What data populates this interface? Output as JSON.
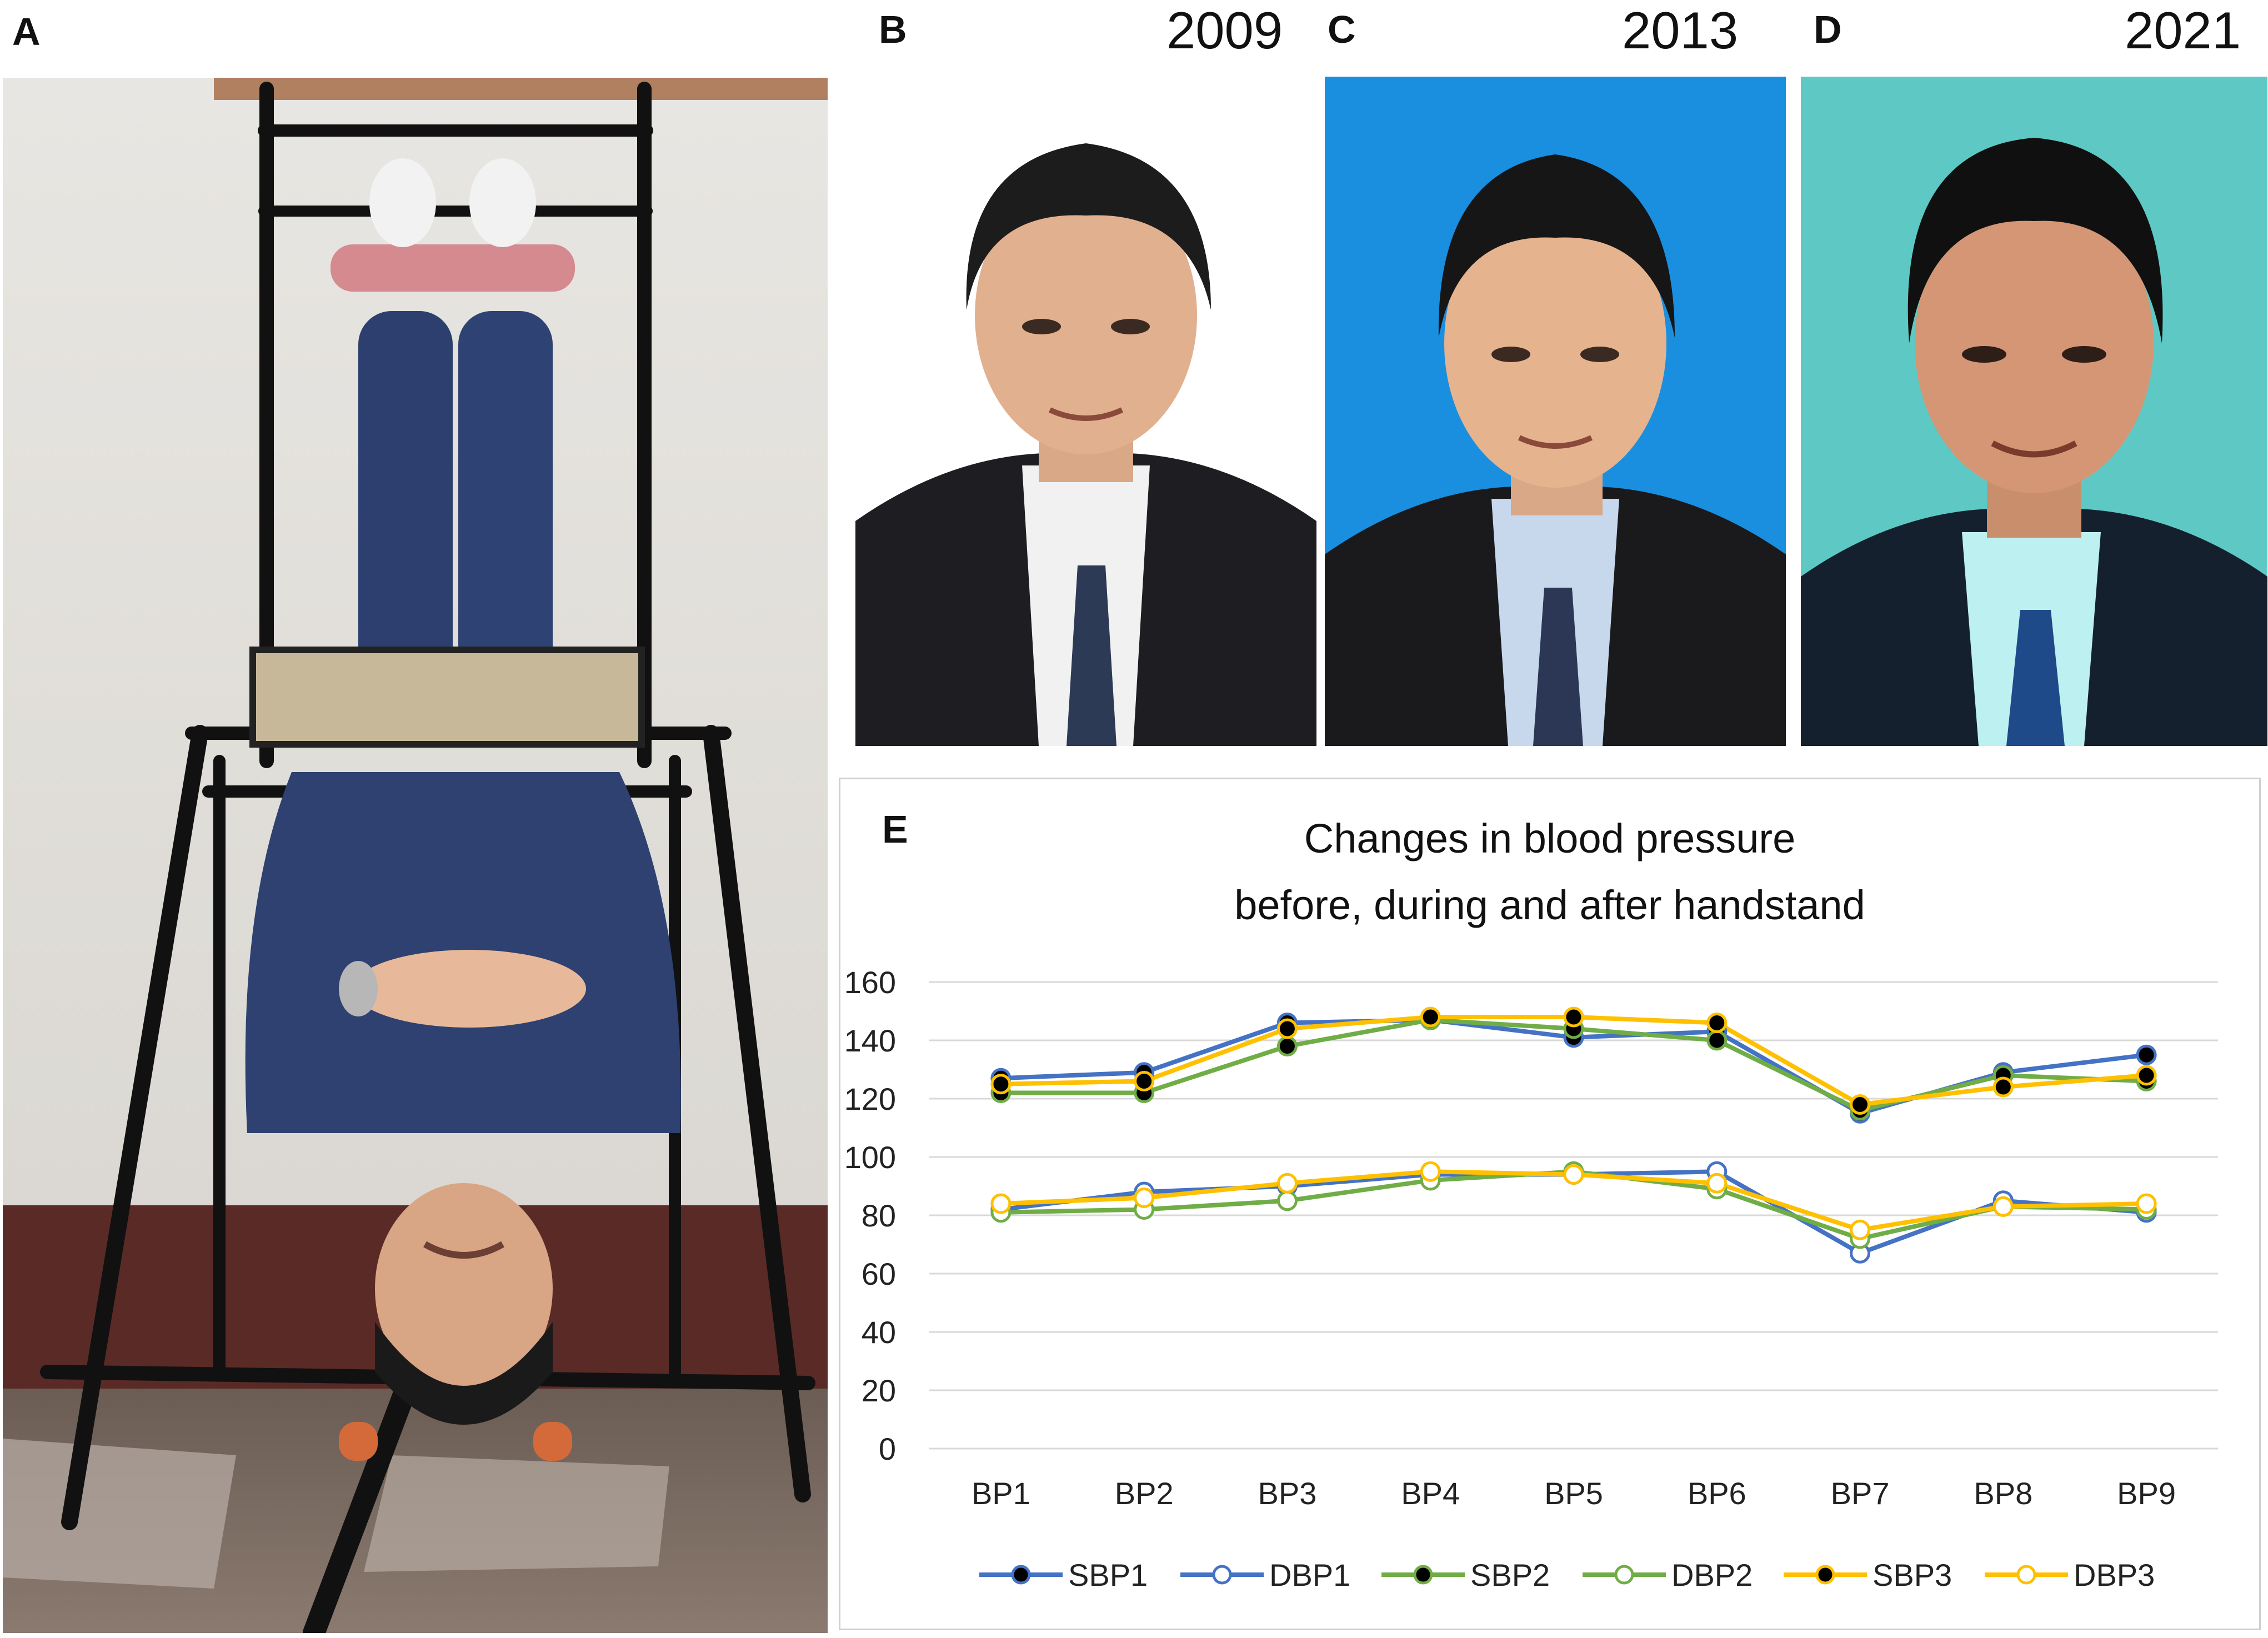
{
  "panels": {
    "A": {
      "label": "A"
    },
    "B": {
      "label": "B",
      "year": "2009"
    },
    "C": {
      "label": "C",
      "year": "2013"
    },
    "D": {
      "label": "D",
      "year": "2021"
    },
    "E": {
      "label": "E"
    }
  },
  "colors": {
    "photo_b_background": "#ffffff",
    "photo_c_background": "#1a8fe0",
    "photo_d_background": "#5ec9c4",
    "sbp1": "#4472c4",
    "sbp2": "#70ad47",
    "sbp3": "#ffc000",
    "grid": "#d9d9d9"
  },
  "chart_data": {
    "type": "line",
    "title_line1": "Changes in blood pressure",
    "title_line2": "before, during and after handstand",
    "categories": [
      "BP1",
      "BP2",
      "BP3",
      "BP4",
      "BP5",
      "BP6",
      "BP7",
      "BP8",
      "BP9"
    ],
    "ylim": [
      0,
      160
    ],
    "yticks": [
      0,
      20,
      40,
      60,
      80,
      100,
      120,
      140,
      160
    ],
    "grid": true,
    "legend_position": "bottom",
    "series": [
      {
        "name": "SBP1",
        "color": "#4472c4",
        "marker": "filled",
        "values": [
          127,
          129,
          146,
          147,
          141,
          143,
          115,
          129,
          135
        ]
      },
      {
        "name": "DBP1",
        "color": "#4472c4",
        "marker": "open",
        "values": [
          82,
          88,
          90,
          94,
          94,
          95,
          67,
          85,
          81
        ]
      },
      {
        "name": "SBP2",
        "color": "#70ad47",
        "marker": "filled",
        "values": [
          122,
          122,
          138,
          147,
          144,
          140,
          116,
          128,
          126
        ]
      },
      {
        "name": "DBP2",
        "color": "#70ad47",
        "marker": "open",
        "values": [
          81,
          82,
          85,
          92,
          95,
          89,
          72,
          83,
          82
        ]
      },
      {
        "name": "SBP3",
        "color": "#ffc000",
        "marker": "filled",
        "values": [
          125,
          126,
          144,
          148,
          148,
          146,
          118,
          124,
          128
        ]
      },
      {
        "name": "DBP3",
        "color": "#ffc000",
        "marker": "open",
        "values": [
          84,
          86,
          91,
          95,
          94,
          91,
          75,
          83,
          84
        ]
      }
    ]
  }
}
